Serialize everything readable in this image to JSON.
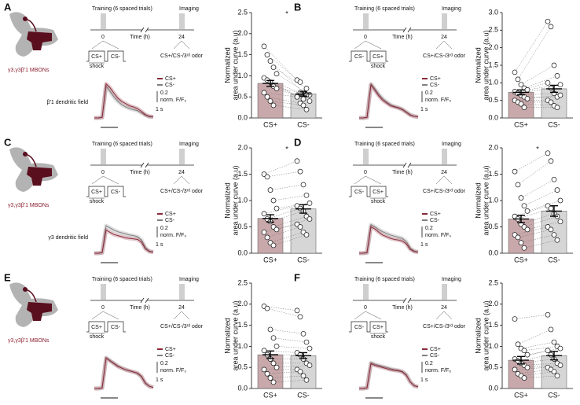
{
  "panels": [
    {
      "letter": "A",
      "mbon": "γ3,γ3β'1 MBONs",
      "training": "Training (6 spaced trials)",
      "imaging": "Imaging",
      "time_ticks": [
        0,
        24
      ],
      "time_label": "Time (h)",
      "trial": [
        "CS+",
        "CS-"
      ],
      "shock": "shock",
      "test": "CS+/CS-/3ʳᵈ odor",
      "dendrite": "β'1 dendritic field",
      "trace": {
        "series": [
          {
            "name": "CS+",
            "color": "#8b2a3a",
            "values": [
              0,
              0,
              0.01,
              0.62,
              0.55,
              0.45,
              0.36,
              0.3,
              0.26,
              0.22,
              0.2,
              0.17,
              0.12,
              0.06,
              0.03,
              0.02
            ]
          },
          {
            "name": "CS-",
            "color": "#808080",
            "values": [
              0,
              0,
              0.01,
              0.58,
              0.48,
              0.38,
              0.3,
              0.24,
              0.2,
              0.17,
              0.15,
              0.13,
              0.09,
              0.05,
              0.02,
              0.02
            ]
          }
        ]
      },
      "scale": {
        "y": 0.2,
        "y_label": "norm. F/F₀",
        "x_label": "1 s"
      }
    },
    {
      "letter": "B",
      "training": "Training (6 spaced trials)",
      "imaging": "Imaging",
      "time_ticks": [
        0,
        24
      ],
      "time_label": "Time (h)",
      "trial": [
        "CS-",
        "CS+"
      ],
      "shock": "shock",
      "test": "CS+/CS-/3ʳᵈ odor",
      "trace": {
        "series": [
          {
            "name": "CS+",
            "color": "#8b2a3a",
            "values": [
              0,
              0,
              0.01,
              0.6,
              0.5,
              0.4,
              0.32,
              0.27,
              0.22,
              0.2,
              0.18,
              0.15,
              0.1,
              0.05,
              0.03,
              0.02
            ]
          },
          {
            "name": "CS-",
            "color": "#808080",
            "values": [
              0,
              0,
              0.01,
              0.62,
              0.53,
              0.43,
              0.35,
              0.29,
              0.24,
              0.21,
              0.19,
              0.16,
              0.11,
              0.06,
              0.03,
              0.02
            ]
          }
        ]
      },
      "scale": {
        "y": 0.2,
        "y_label": "norm. F/F₀",
        "x_label": "1 s"
      }
    },
    {
      "letter": "C",
      "mbon": "γ3,γ3β'1 MBONs",
      "training": "Training (6 spaced trials)",
      "imaging": "Imaging",
      "time_ticks": [
        0,
        24
      ],
      "time_label": "Time (h)",
      "trial": [
        "CS+",
        "CS-"
      ],
      "shock": "shock",
      "test": "CS+/CS-/3ʳᵈ odor",
      "dendrite": "γ3 dendritic field",
      "trace": {
        "series": [
          {
            "name": "CS+",
            "color": "#8b2a3a",
            "values": [
              0,
              0,
              0.01,
              0.42,
              0.38,
              0.34,
              0.32,
              0.3,
              0.28,
              0.27,
              0.26,
              0.25,
              0.2,
              0.08,
              0.03,
              0.02
            ]
          },
          {
            "name": "CS-",
            "color": "#808080",
            "values": [
              0,
              0,
              0.01,
              0.5,
              0.46,
              0.42,
              0.39,
              0.37,
              0.35,
              0.33,
              0.32,
              0.3,
              0.24,
              0.1,
              0.04,
              0.02
            ]
          }
        ]
      },
      "scale": {
        "y": 0.2,
        "y_label": "norm. F/F₀",
        "x_label": "1 s"
      }
    },
    {
      "letter": "D",
      "training": "Training (6 spaced trials)",
      "imaging": "Imaging",
      "time_ticks": [
        0,
        24
      ],
      "time_label": "Time (h)",
      "trial": [
        "CS-",
        "CS+"
      ],
      "shock": "shock",
      "test": "CS+/CS-/3ʳᵈ odor",
      "trace": {
        "series": [
          {
            "name": "CS+",
            "color": "#8b2a3a",
            "values": [
              0,
              0,
              0.01,
              0.48,
              0.44,
              0.38,
              0.33,
              0.3,
              0.27,
              0.25,
              0.24,
              0.22,
              0.17,
              0.07,
              0.03,
              0.02
            ]
          },
          {
            "name": "CS-",
            "color": "#808080",
            "values": [
              0,
              0,
              0.01,
              0.52,
              0.48,
              0.43,
              0.39,
              0.36,
              0.33,
              0.31,
              0.29,
              0.27,
              0.21,
              0.09,
              0.04,
              0.02
            ]
          }
        ]
      },
      "scale": {
        "y": 0.2,
        "y_label": "norm. F/F₀",
        "x_label": "1 s"
      }
    },
    {
      "letter": "E",
      "mbon": "γ3,γ3β'1 MBONs",
      "training": "Training (6 spaced trials)",
      "imaging": "Imaging",
      "time_ticks": [
        0,
        24
      ],
      "time_label": "Time (h)",
      "trial": [
        "CS+",
        "CS-"
      ],
      "shock": "shock",
      "test": "CS+/CS-/3ʳᵈ odor",
      "trace": {
        "series": [
          {
            "name": "CS+",
            "color": "#8b2a3a",
            "values": [
              0,
              0,
              0.01,
              0.55,
              0.5,
              0.45,
              0.4,
              0.37,
              0.34,
              0.32,
              0.3,
              0.28,
              0.22,
              0.1,
              0.04,
              0.02
            ]
          },
          {
            "name": "CS-",
            "color": "#808080",
            "values": [
              0,
              0,
              0.01,
              0.56,
              0.51,
              0.46,
              0.41,
              0.37,
              0.34,
              0.32,
              0.3,
              0.27,
              0.21,
              0.09,
              0.04,
              0.02
            ]
          }
        ]
      },
      "scale": {
        "y": 0.2,
        "y_label": "norm. F/F₀",
        "x_label": "1 s"
      }
    },
    {
      "letter": "F",
      "training": "Training (6 spaced trials)",
      "imaging": "Imaging",
      "time_ticks": [
        0,
        24
      ],
      "time_label": "Time (h)",
      "trial": [
        "CS-",
        "CS+"
      ],
      "shock": "shock",
      "test": "CS+/CS-/3ʳᵈ odor",
      "trace": {
        "series": [
          {
            "name": "CS+",
            "color": "#8b2a3a",
            "values": [
              0,
              0,
              0.01,
              0.45,
              0.42,
              0.4,
              0.38,
              0.36,
              0.34,
              0.33,
              0.32,
              0.3,
              0.24,
              0.12,
              0.05,
              0.03
            ]
          },
          {
            "name": "CS-",
            "color": "#808080",
            "values": [
              0,
              0,
              0.01,
              0.47,
              0.44,
              0.42,
              0.4,
              0.38,
              0.36,
              0.34,
              0.33,
              0.31,
              0.25,
              0.12,
              0.05,
              0.03
            ]
          }
        ]
      },
      "scale": {
        "y": 0.2,
        "y_label": "norm. F/Fₒ",
        "x_label": "1 s"
      }
    }
  ],
  "chart_data": [
    {
      "type": "bar",
      "ylabel": [
        "Normalized",
        "area under curve (a.u)"
      ],
      "categories": [
        "CS+",
        "CS-"
      ],
      "values": [
        0.82,
        0.57
      ],
      "errors": [
        0.07,
        0.05
      ],
      "colors": [
        "#c8a8aa",
        "#d6d6d6"
      ],
      "points": [
        [
          1.7,
          1.5,
          1.35,
          1.2,
          1.05,
          0.95,
          0.9,
          0.85,
          0.75,
          0.7,
          0.6,
          0.5,
          0.4,
          0.3
        ],
        [
          0.9,
          0.85,
          0.6,
          0.7,
          0.55,
          0.5,
          0.6,
          0.45,
          0.55,
          0.4,
          0.5,
          0.35,
          0.3,
          0.2
        ]
      ],
      "ylim": [
        0,
        2.5
      ],
      "yticks": [
        {
          "value": 0,
          "label": "0.0"
        },
        {
          "value": 0.5,
          "label": "0.5"
        },
        {
          "value": 1,
          "label": "1.0"
        },
        {
          "value": 1.5,
          "label": "1.5"
        },
        {
          "value": 2,
          "label": "2.0"
        },
        {
          "value": 2.5,
          "label": "2.5"
        }
      ],
      "annotation": "*"
    },
    {
      "type": "bar",
      "ylabel": [
        "Normalized",
        "area under curve (a.u)"
      ],
      "categories": [
        "CS+",
        "CS-"
      ],
      "values": [
        0.73,
        0.83
      ],
      "errors": [
        0.07,
        0.1
      ],
      "colors": [
        "#c8a8aa",
        "#d6d6d6"
      ],
      "points": [
        [
          1.3,
          1.1,
          0.95,
          0.85,
          0.8,
          0.75,
          0.7,
          0.65,
          0.6,
          0.55,
          0.5,
          0.45,
          0.4,
          0.3
        ],
        [
          2.75,
          2.6,
          1.5,
          1.2,
          0.95,
          1.0,
          0.85,
          0.7,
          0.6,
          0.65,
          0.5,
          0.45,
          0.35,
          0.3
        ]
      ],
      "ylim": [
        0,
        3
      ],
      "yticks": [
        {
          "value": 0,
          "label": "0.0"
        },
        {
          "value": 0.5,
          "label": "0.5"
        },
        {
          "value": 1,
          "label": "1.0"
        },
        {
          "value": 1.5,
          "label": "1.5"
        },
        {
          "value": 2,
          "label": "2.0"
        },
        {
          "value": 2.5,
          "label": "2.5"
        },
        {
          "value": 3,
          "label": "3.0"
        }
      ]
    },
    {
      "type": "bar",
      "ylabel": [
        "Normalized",
        "area under curve (a.u)"
      ],
      "categories": [
        "CS+",
        "CS-"
      ],
      "values": [
        0.66,
        0.84
      ],
      "errors": [
        0.07,
        0.08
      ],
      "colors": [
        "#c8a8aa",
        "#d6d6d6"
      ],
      "points": [
        [
          1.5,
          1.45,
          1.2,
          1.0,
          0.85,
          0.75,
          0.65,
          0.6,
          0.5,
          0.45,
          0.4,
          0.3,
          0.2,
          0.15
        ],
        [
          1.75,
          1.55,
          1.3,
          1.1,
          0.95,
          0.9,
          0.85,
          0.8,
          0.7,
          0.65,
          0.55,
          0.5,
          0.4,
          0.35
        ]
      ],
      "ylim": [
        0,
        2
      ],
      "yticks": [
        {
          "value": 0,
          "label": "0.0"
        },
        {
          "value": 0.5,
          "label": "0.5"
        },
        {
          "value": 1,
          "label": "1.0"
        },
        {
          "value": 1.5,
          "label": "1.5"
        },
        {
          "value": 2,
          "label": "2.0"
        }
      ],
      "annotation": "*"
    },
    {
      "type": "bar",
      "ylabel": [
        "Normalized",
        "area under curve (a.u)"
      ],
      "categories": [
        "CS+",
        "CS-"
      ],
      "values": [
        0.65,
        0.8
      ],
      "errors": [
        0.07,
        0.1
      ],
      "colors": [
        "#c8a8aa",
        "#d6d6d6"
      ],
      "points": [
        [
          1.55,
          1.3,
          1.05,
          0.9,
          0.8,
          0.7,
          0.65,
          0.55,
          0.5,
          0.45,
          0.35,
          0.3,
          0.2,
          0.1
        ],
        [
          1.9,
          1.75,
          1.4,
          1.2,
          1.0,
          0.9,
          0.85,
          0.75,
          0.7,
          0.6,
          0.5,
          0.45,
          0.35,
          0.25
        ]
      ],
      "ylim": [
        0,
        2
      ],
      "yticks": [
        {
          "value": 0,
          "label": "0.0"
        },
        {
          "value": 0.5,
          "label": "0.5"
        },
        {
          "value": 1,
          "label": "1.0"
        },
        {
          "value": 1.5,
          "label": "1.5"
        },
        {
          "value": 2,
          "label": "2.0"
        }
      ],
      "annotation": "*"
    },
    {
      "type": "bar",
      "ylabel": [
        "Normalized",
        "area under curve (a.u)"
      ],
      "categories": [
        "CS+",
        "CS-"
      ],
      "values": [
        0.8,
        0.78
      ],
      "errors": [
        0.09,
        0.07
      ],
      "colors": [
        "#c8a8aa",
        "#d6d6d6"
      ],
      "points": [
        [
          1.95,
          1.9,
          1.4,
          1.2,
          1.0,
          0.9,
          0.8,
          0.7,
          0.6,
          0.5,
          0.45,
          0.35,
          0.25,
          0.15
        ],
        [
          1.85,
          1.7,
          1.3,
          1.1,
          0.95,
          0.85,
          0.8,
          0.7,
          0.6,
          0.55,
          0.45,
          0.4,
          0.3,
          0.2
        ]
      ],
      "ylim": [
        0,
        2.5
      ],
      "yticks": [
        {
          "value": 0,
          "label": "0.0"
        },
        {
          "value": 0.5,
          "label": "0.5"
        },
        {
          "value": 1,
          "label": "1.0"
        },
        {
          "value": 1.5,
          "label": "1.5"
        },
        {
          "value": 2,
          "label": "2.0"
        },
        {
          "value": 2.5,
          "label": "2.5"
        }
      ]
    },
    {
      "type": "bar",
      "ylabel": [
        "Normalized",
        "area under curve (a.u)"
      ],
      "categories": [
        "CS+",
        "CS-"
      ],
      "values": [
        0.67,
        0.78
      ],
      "errors": [
        0.09,
        0.1
      ],
      "colors": [
        "#c8a8aa",
        "#d6d6d6"
      ],
      "points": [
        [
          1.65,
          1.05,
          0.95,
          0.9,
          0.8,
          0.7,
          0.65,
          0.6,
          0.55,
          0.5,
          0.45,
          0.35,
          0.3,
          0.25
        ],
        [
          1.75,
          1.4,
          1.1,
          1.0,
          0.95,
          0.9,
          0.8,
          0.7,
          0.6,
          0.55,
          0.5,
          0.45,
          0.4,
          0.3
        ]
      ],
      "ylim": [
        0,
        2.5
      ],
      "yticks": [
        {
          "value": 0,
          "label": "0.0"
        },
        {
          "value": 0.5,
          "label": "0.5"
        },
        {
          "value": 1,
          "label": "1.0"
        },
        {
          "value": 1.5,
          "label": "1.5"
        },
        {
          "value": 2,
          "label": "2.0"
        },
        {
          "value": 2.5,
          "label": "2.5"
        }
      ]
    }
  ]
}
